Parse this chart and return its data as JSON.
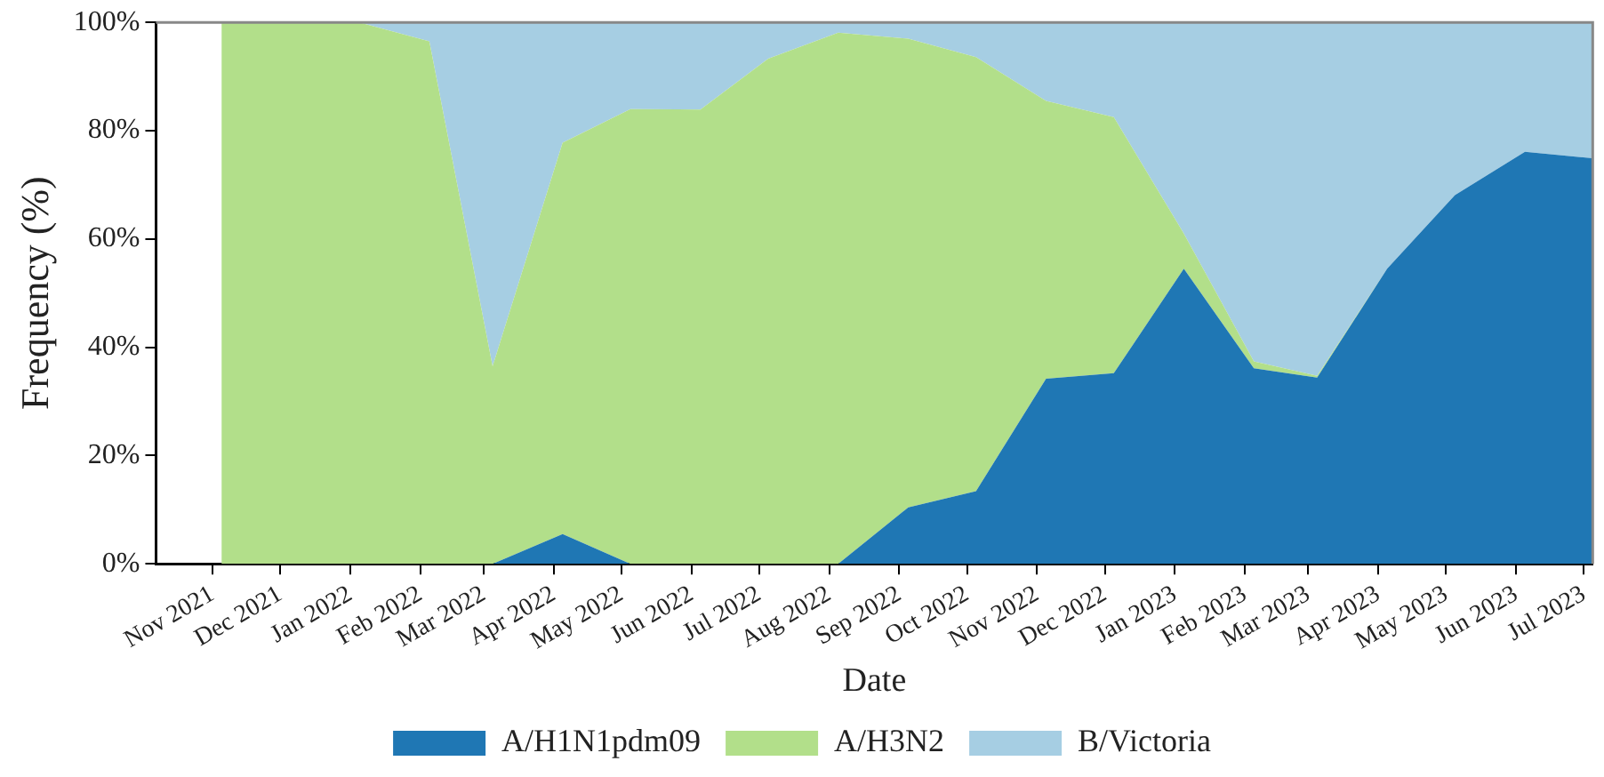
{
  "chart_data": {
    "type": "area",
    "stacked": true,
    "xlabel": "Date",
    "ylabel": "Frequency (%)",
    "legend": "bottom",
    "grid": false,
    "x": [
      "2021-11-05",
      "2021-12-05",
      "2022-01-05",
      "2022-02-05",
      "2022-03-05",
      "2022-04-05",
      "2022-05-05",
      "2022-06-05",
      "2022-07-05",
      "2022-08-05",
      "2022-09-05",
      "2022-10-05",
      "2022-11-05",
      "2022-12-05",
      "2023-01-05",
      "2023-02-05",
      "2023-03-05",
      "2023-04-05",
      "2023-05-05",
      "2023-06-05",
      "2023-07-05"
    ],
    "series": [
      {
        "name": "A/H1N1pdm09",
        "color": "#1f77b4",
        "values": [
          0,
          0,
          0,
          0,
          0,
          5.5,
          0,
          0,
          0,
          0,
          10.4,
          13.4,
          34.2,
          35.2,
          54.5,
          36.1,
          34.4,
          54.5,
          68.1,
          76.1,
          74.9
        ]
      },
      {
        "name": "A/H3N2",
        "color": "#b2df8a",
        "values": [
          100,
          100,
          100,
          96.5,
          36.5,
          72.3,
          84.0,
          83.9,
          93.3,
          98.1,
          86.6,
          80.2,
          51.3,
          47.3,
          6.5,
          1.3,
          0.3,
          0,
          0,
          0,
          0
        ]
      },
      {
        "name": "B/Victoria",
        "color": "#a6cee3",
        "values": [
          0,
          0,
          0,
          3.5,
          63.5,
          22.2,
          16.0,
          16.1,
          6.7,
          1.9,
          3.0,
          6.4,
          14.5,
          17.5,
          39.0,
          62.6,
          65.3,
          45.5,
          31.9,
          23.9,
          25.1
        ]
      }
    ],
    "xlim": [
      "2021-10-07",
      "2023-07-05"
    ],
    "xticks": [
      {
        "value": "2021-11-01",
        "label": "Nov 2021"
      },
      {
        "value": "2021-12-01",
        "label": "Dec 2021"
      },
      {
        "value": "2022-01-01",
        "label": "Jan 2022"
      },
      {
        "value": "2022-02-01",
        "label": "Feb 2022"
      },
      {
        "value": "2022-03-01",
        "label": "Mar 2022"
      },
      {
        "value": "2022-04-01",
        "label": "Apr 2022"
      },
      {
        "value": "2022-05-01",
        "label": "May 2022"
      },
      {
        "value": "2022-06-01",
        "label": "Jun 2022"
      },
      {
        "value": "2022-07-01",
        "label": "Jul 2022"
      },
      {
        "value": "2022-08-01",
        "label": "Aug 2022"
      },
      {
        "value": "2022-09-01",
        "label": "Sep 2022"
      },
      {
        "value": "2022-10-01",
        "label": "Oct 2022"
      },
      {
        "value": "2022-11-01",
        "label": "Nov 2022"
      },
      {
        "value": "2022-12-01",
        "label": "Dec 2022"
      },
      {
        "value": "2023-01-01",
        "label": "Jan 2023"
      },
      {
        "value": "2023-02-01",
        "label": "Feb 2023"
      },
      {
        "value": "2023-03-01",
        "label": "Mar 2023"
      },
      {
        "value": "2023-04-01",
        "label": "Apr 2023"
      },
      {
        "value": "2023-05-01",
        "label": "May 2023"
      },
      {
        "value": "2023-06-01",
        "label": "Jun 2023"
      },
      {
        "value": "2023-07-01",
        "label": "Jul 2023"
      }
    ],
    "ylim": [
      0,
      100
    ],
    "yticks": [
      {
        "value": 0,
        "label": "0%"
      },
      {
        "value": 20,
        "label": "20%"
      },
      {
        "value": 40,
        "label": "40%"
      },
      {
        "value": 60,
        "label": "60%"
      },
      {
        "value": 80,
        "label": "80%"
      },
      {
        "value": 100,
        "label": "100%"
      }
    ]
  }
}
